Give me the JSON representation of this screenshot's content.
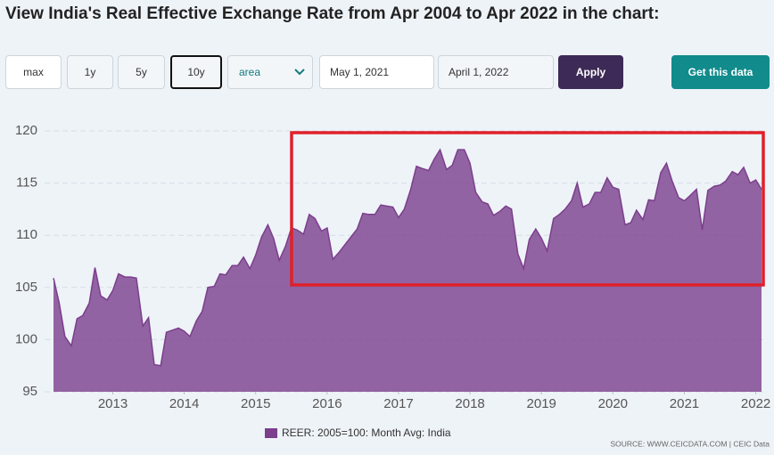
{
  "header": {
    "title": "View India's Real Effective Exchange Rate from Apr 2004 to Apr 2022 in the chart:"
  },
  "controls": {
    "ranges": [
      "max",
      "1y",
      "5y",
      "10y"
    ],
    "chart_type": "area",
    "start_date": "May 1, 2021",
    "end_date": "April 1, 2022",
    "apply": "Apply",
    "get_data": "Get this data"
  },
  "chart_data": {
    "type": "area",
    "x": [
      2012.17,
      2012.25,
      2012.33,
      2012.42,
      2012.5,
      2012.58,
      2012.67,
      2012.75,
      2012.83,
      2012.92,
      2013.0,
      2013.08,
      2013.17,
      2013.25,
      2013.33,
      2013.42,
      2013.5,
      2013.58,
      2013.67,
      2013.75,
      2013.83,
      2013.92,
      2014.0,
      2014.08,
      2014.17,
      2014.25,
      2014.33,
      2014.42,
      2014.5,
      2014.58,
      2014.67,
      2014.75,
      2014.83,
      2014.92,
      2015.0,
      2015.08,
      2015.17,
      2015.25,
      2015.33,
      2015.42,
      2015.5,
      2015.58,
      2015.67,
      2015.75,
      2015.83,
      2015.92,
      2016.0,
      2016.08,
      2016.17,
      2016.25,
      2016.33,
      2016.42,
      2016.5,
      2016.58,
      2016.67,
      2016.75,
      2016.83,
      2016.92,
      2017.0,
      2017.08,
      2017.17,
      2017.25,
      2017.33,
      2017.42,
      2017.5,
      2017.58,
      2017.67,
      2017.75,
      2017.83,
      2017.92,
      2018.0,
      2018.08,
      2018.17,
      2018.25,
      2018.33,
      2018.42,
      2018.5,
      2018.58,
      2018.67,
      2018.75,
      2018.83,
      2018.92,
      2019.0,
      2019.08,
      2019.17,
      2019.25,
      2019.33,
      2019.42,
      2019.5,
      2019.58,
      2019.67,
      2019.75,
      2019.83,
      2019.92,
      2020.0,
      2020.08,
      2020.17,
      2020.25,
      2020.33,
      2020.42,
      2020.5,
      2020.58,
      2020.67,
      2020.75,
      2020.83,
      2020.92,
      2021.0,
      2021.08,
      2021.17,
      2021.25,
      2021.33,
      2021.42,
      2021.5,
      2021.58,
      2021.67,
      2021.75,
      2021.83,
      2021.92,
      2022.0,
      2022.08
    ],
    "series": [
      {
        "name": "REER: 2005=100: Month Avg: India",
        "color": "#7b3f8c",
        "values": [
          105.9,
          103.5,
          100.3,
          99.4,
          102.0,
          102.3,
          103.5,
          106.9,
          104.2,
          103.8,
          104.7,
          106.3,
          106.0,
          106.0,
          105.9,
          101.3,
          102.1,
          97.6,
          97.5,
          100.7,
          100.9,
          101.1,
          100.8,
          100.3,
          101.8,
          102.7,
          105.0,
          105.1,
          106.3,
          106.2,
          107.1,
          107.1,
          107.9,
          106.8,
          108.1,
          109.8,
          111.0,
          109.7,
          107.6,
          109.0,
          110.7,
          110.5,
          110.1,
          112.0,
          111.6,
          110.4,
          110.7,
          107.7,
          108.4,
          109.1,
          109.8,
          110.6,
          112.1,
          112.0,
          112.0,
          112.9,
          112.8,
          112.7,
          111.7,
          112.5,
          114.4,
          116.6,
          116.4,
          116.2,
          117.3,
          118.2,
          116.3,
          116.7,
          118.2,
          118.2,
          116.9,
          114.1,
          113.2,
          113.0,
          111.9,
          112.3,
          112.8,
          112.5,
          108.2,
          106.8,
          109.6,
          110.6,
          109.7,
          108.5,
          111.6,
          112.0,
          112.5,
          113.3,
          115.0,
          112.7,
          113.0,
          114.1,
          114.1,
          115.5,
          114.6,
          114.4,
          111.0,
          111.2,
          112.4,
          111.5,
          113.4,
          113.3,
          116.0,
          116.9,
          115.2,
          113.6,
          113.3,
          113.8,
          114.4,
          110.5,
          114.3,
          114.7,
          114.8,
          115.2,
          116.1,
          115.8,
          116.5,
          115.0,
          115.3,
          114.4
        ]
      }
    ],
    "xlim": [
      2012.17,
      2022.08
    ],
    "xticks": [
      2013,
      2014,
      2015,
      2016,
      2017,
      2018,
      2019,
      2020,
      2021,
      2022
    ],
    "ylim": [
      95,
      120
    ],
    "yticks": [
      95,
      100,
      105,
      110,
      115,
      120
    ],
    "grid": true,
    "source": "SOURCE: WWW.CEICDATA.COM | CEIC Data"
  }
}
